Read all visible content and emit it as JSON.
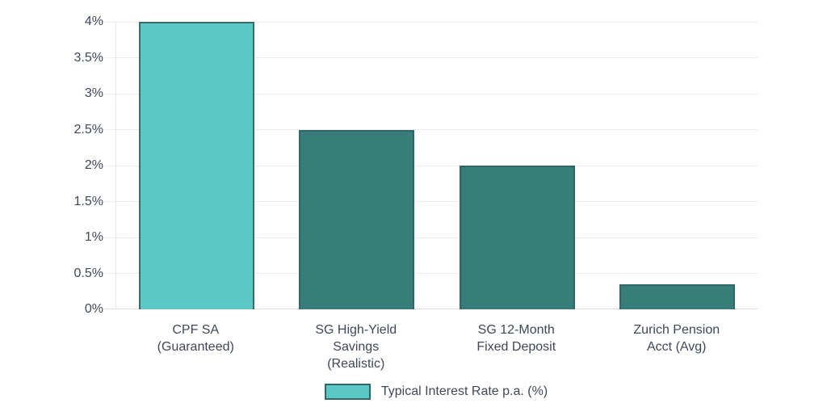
{
  "chart_data": {
    "type": "bar",
    "title": "",
    "categories": [
      [
        "CPF SA",
        "(Guaranteed)"
      ],
      [
        "SG High-Yield",
        "Savings",
        "(Realistic)"
      ],
      [
        "SG 12-Month",
        "Fixed Deposit"
      ],
      [
        "Zurich Pension",
        "Acct (Avg)"
      ]
    ],
    "values": [
      4,
      2.5,
      2,
      0.35
    ],
    "series_name": "Typical Interest Rate p.a. (%)",
    "ylabel": "",
    "xlabel": "",
    "ylim": [
      0,
      4
    ],
    "ytick_step": 0.5,
    "ytick_labels": [
      "0%",
      "0.5%",
      "1%",
      "1.5%",
      "2%",
      "2.5%",
      "3%",
      "3.5%",
      "4%"
    ],
    "grid": true,
    "legend_position": "bottom",
    "colors": {
      "highlight_bar_fill": "#5bc8c6",
      "highlight_bar_border": "#3a6b6b",
      "default_bar_fill": "#377d7a",
      "default_bar_border": "#2e6765",
      "text": "#3e4858",
      "gridline": "#ecedef",
      "baseline": "#dbdee1",
      "background": "#ffffff"
    }
  }
}
